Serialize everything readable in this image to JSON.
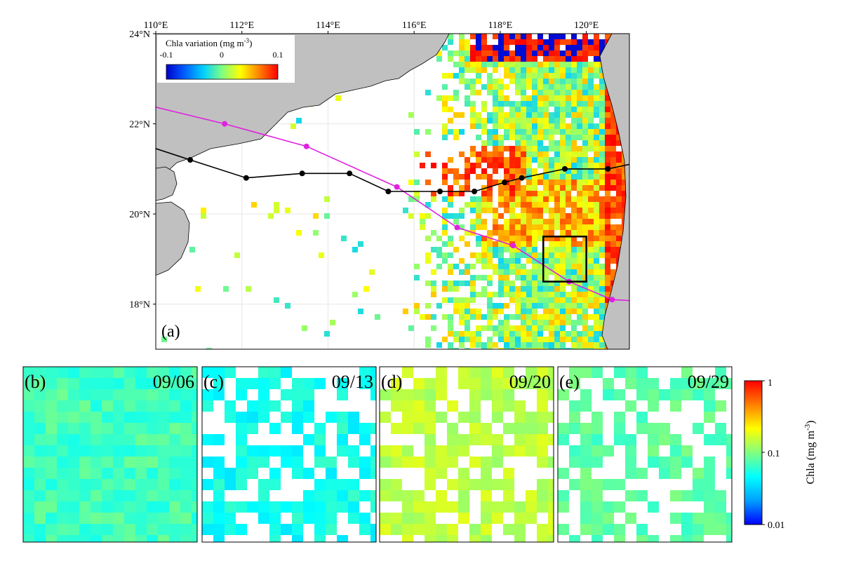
{
  "main_map": {
    "panel_label": "(a)",
    "lon_ticks": [
      "110°E",
      "112°E",
      "114°E",
      "116°E",
      "118°E",
      "120°E"
    ],
    "lat_ticks": [
      "24°N",
      "22°N",
      "20°N",
      "18°N"
    ],
    "inset_colorbar": {
      "title": "Chla variation (mg m",
      "title_superscript": "-3",
      "title_close": ")",
      "ticks": [
        "-0.1",
        "0",
        "0.1"
      ],
      "range": [
        -0.1,
        0.1
      ],
      "colors": [
        "#0000cc",
        "#0060ff",
        "#00d0ff",
        "#80ff80",
        "#ffff00",
        "#ff8000",
        "#ff0000"
      ]
    },
    "tracks": [
      {
        "color": "#e020e0",
        "points": [
          [
            110.0,
            22.37
          ],
          [
            111.6,
            22.0
          ],
          [
            113.5,
            21.5
          ],
          [
            115.6,
            20.6
          ],
          [
            117.0,
            19.7
          ],
          [
            118.3,
            19.3
          ],
          [
            119.6,
            18.5
          ],
          [
            120.6,
            18.1
          ],
          [
            121.0,
            18.08
          ]
        ]
      },
      {
        "color": "#000000",
        "points": [
          [
            110.0,
            21.45
          ],
          [
            110.8,
            21.2
          ],
          [
            112.1,
            20.8
          ],
          [
            113.4,
            20.9
          ],
          [
            114.5,
            20.9
          ],
          [
            115.4,
            20.5
          ],
          [
            116.6,
            20.5
          ],
          [
            117.4,
            20.5
          ],
          [
            118.1,
            20.7
          ],
          [
            118.5,
            20.8
          ],
          [
            119.5,
            21.0
          ],
          [
            120.5,
            21.0
          ],
          [
            121.0,
            21.1
          ]
        ]
      }
    ],
    "study_box": {
      "lon": [
        119.0,
        120.0
      ],
      "lat": [
        18.5,
        19.5
      ],
      "color": "#000000"
    }
  },
  "panels": [
    {
      "label": "(b)",
      "date": "09/06"
    },
    {
      "label": "(c)",
      "date": "09/13"
    },
    {
      "label": "(d)",
      "date": "09/20"
    },
    {
      "label": "(e)",
      "date": "09/29"
    }
  ],
  "colorbar": {
    "label": "Chla (mg m",
    "label_superscript": "-3",
    "label_close": ")",
    "ticks": [
      "1",
      "0.1",
      "0.01"
    ],
    "scale": "log",
    "range": [
      0.01,
      1
    ],
    "colors": [
      "#0000ff",
      "#00a0ff",
      "#00ffff",
      "#80ff80",
      "#ffff00",
      "#ff8000",
      "#ff0000"
    ]
  },
  "colors": {
    "land": "#c0c0c0",
    "frame": "#000000"
  }
}
